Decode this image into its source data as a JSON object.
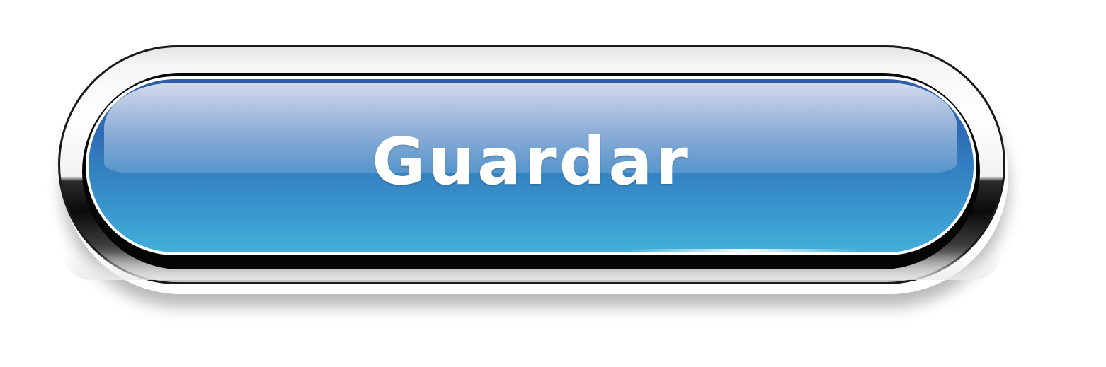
{
  "button": {
    "label": "Guardar"
  },
  "colors": {
    "face_top": "#2f5aa8",
    "face_bottom": "#41b0da",
    "label": "#ffffff",
    "bezel": "#f2f2f2",
    "ring": "#050505"
  }
}
